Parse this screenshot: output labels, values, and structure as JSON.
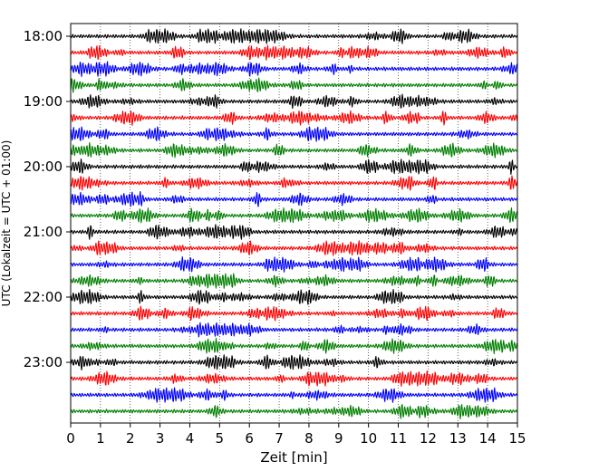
{
  "chart_data": {
    "type": "line",
    "title": "",
    "xlabel": "Zeit  [min]",
    "ylabel": "UTC (Lokalzeit = UTC + 01:00)",
    "xlim": [
      0,
      15
    ],
    "x_ticks": [
      "0",
      "1",
      "2",
      "3",
      "4",
      "5",
      "6",
      "7",
      "8",
      "9",
      "10",
      "11",
      "12",
      "13",
      "14",
      "15"
    ],
    "y_tick_labels": [
      "18:00",
      "19:00",
      "20:00",
      "21:00",
      "22:00",
      "23:00"
    ],
    "trace_interval_minutes": 15,
    "start_time": "18:00",
    "trace_count": 24,
    "trace_colors": [
      "#000000",
      "#ff0000",
      "#0000ff",
      "#007f00"
    ],
    "grid": "x-dotted",
    "series_note_values": "seismogram traces, one per 15-minute window, colors cycle black/red/blue/green"
  }
}
